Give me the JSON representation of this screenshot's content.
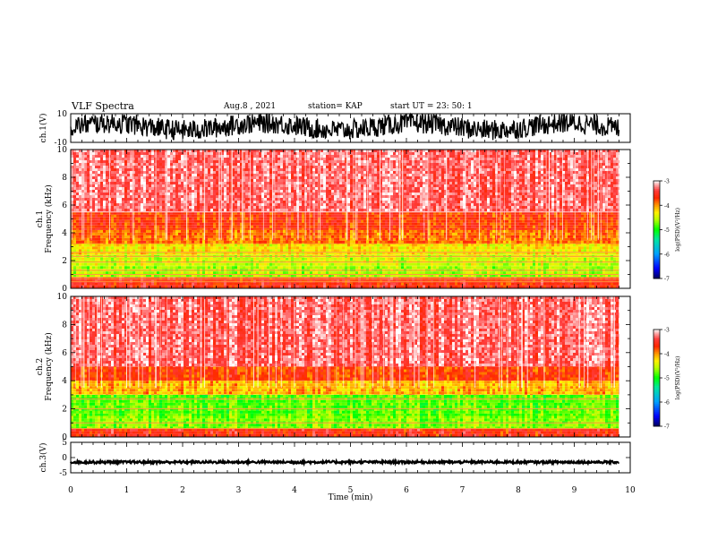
{
  "header": {
    "title": "VLF  Spectra",
    "date": "Aug.8  , 2021",
    "station": "station= KAP",
    "start": "start  UT  =   23: 50: 1"
  },
  "chart_data": [
    {
      "type": "line",
      "id": "ch1-waveform",
      "ylabel": "ch.1(V)",
      "ylim": [
        -10,
        10
      ],
      "yticks": [
        "10",
        "-10"
      ],
      "xlim": [
        0,
        10
      ],
      "x_extent": [
        0,
        9.8
      ],
      "color": "#000000",
      "description_values": {
        "amplitude_low": -7,
        "amplitude_high": 9
      }
    },
    {
      "type": "heatmap",
      "id": "ch1-spectrogram",
      "ylabel": "Frequency  (kHz)",
      "ylabel2": "ch.1",
      "ylim": [
        0,
        10
      ],
      "yticks": [
        "0",
        "2",
        "4",
        "6",
        "8",
        "10"
      ],
      "xlim": [
        0,
        10
      ],
      "x_extent": [
        0,
        9.8
      ],
      "levels_by_freq": [
        {
          "f0": 0.0,
          "f1": 0.8,
          "level": -3.6
        },
        {
          "f0": 0.8,
          "f1": 1.6,
          "level": -4.6
        },
        {
          "f0": 1.6,
          "f1": 2.4,
          "level": -4.5
        },
        {
          "f0": 2.4,
          "f1": 3.2,
          "level": -4.3
        },
        {
          "f0": 3.2,
          "f1": 4.2,
          "level": -3.9
        },
        {
          "f0": 4.2,
          "f1": 5.5,
          "level": -3.7
        },
        {
          "f0": 5.5,
          "f1": 10.0,
          "level": -3.3
        }
      ],
      "lines_khz": [
        0.5,
        0.7,
        1.0,
        1.3,
        1.9,
        2.3,
        2.6,
        5.5
      ],
      "colorbar": {
        "label": "log(PSD)(V²/Hz)",
        "ticks": [
          "-3",
          "-4",
          "-5",
          "-6",
          "-7"
        ],
        "range": [
          -7,
          -3
        ]
      }
    },
    {
      "type": "heatmap",
      "id": "ch2-spectrogram",
      "ylabel": "Frequency  (kHz)",
      "ylabel2": "ch.2",
      "ylim": [
        0,
        10
      ],
      "yticks": [
        "0",
        "2",
        "4",
        "6",
        "8",
        "10"
      ],
      "xlim": [
        0,
        10
      ],
      "x_extent": [
        0,
        9.8
      ],
      "levels_by_freq": [
        {
          "f0": 0.0,
          "f1": 0.6,
          "level": -3.6
        },
        {
          "f0": 0.6,
          "f1": 1.5,
          "level": -4.7
        },
        {
          "f0": 1.5,
          "f1": 3.0,
          "level": -4.8
        },
        {
          "f0": 3.0,
          "f1": 4.0,
          "level": -4.1
        },
        {
          "f0": 4.0,
          "f1": 5.0,
          "level": -3.7
        },
        {
          "f0": 5.0,
          "f1": 10.0,
          "level": -3.3
        }
      ],
      "lines_khz": [
        0.6,
        1.0,
        2.0,
        2.7
      ],
      "colorbar": {
        "label": "log(PSD)(V²/Hz)",
        "ticks": [
          "-3",
          "-4",
          "-5",
          "-6",
          "-7"
        ],
        "range": [
          -7,
          -3
        ]
      }
    },
    {
      "type": "line",
      "id": "ch3-waveform",
      "ylabel": "ch.3(V)",
      "ylim": [
        -5,
        5
      ],
      "yticks": [
        "5",
        "0",
        "-5"
      ],
      "xlim": [
        0,
        10
      ],
      "x_extent": [
        0,
        9.8
      ],
      "color": "#000000",
      "description_values": {
        "mean": -1.5,
        "spread": 0.8
      }
    }
  ],
  "time_axis": {
    "xlabel": "Time  (min)",
    "ticks": [
      "0",
      "1",
      "2",
      "3",
      "4",
      "5",
      "6",
      "7",
      "8",
      "9",
      "10"
    ]
  },
  "colors": {
    "colormap": [
      "#000066",
      "#0000ff",
      "#00aaff",
      "#00ff00",
      "#ffff00",
      "#ff8000",
      "#ff0000",
      "#ffffff"
    ]
  }
}
